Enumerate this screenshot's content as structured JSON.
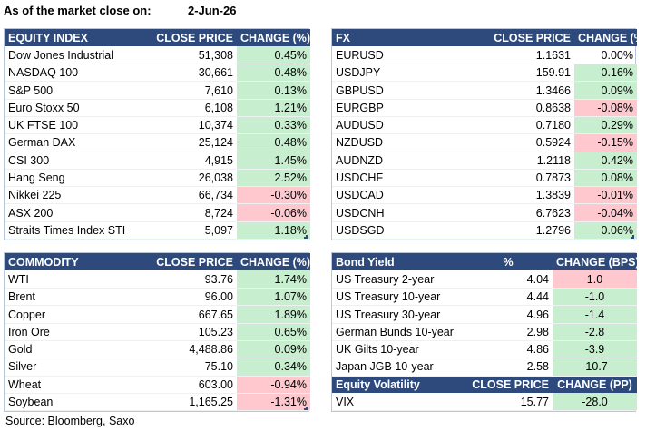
{
  "header": {
    "label": "As of the market close on:",
    "date": "2-Jun-26"
  },
  "equity": {
    "headers": [
      "EQUITY INDEX",
      "CLOSE PRICE",
      "CHANGE (%)"
    ],
    "rows": [
      {
        "name": "Dow Jones Industrial",
        "price": "51,308",
        "change": "0.45%",
        "dir": "pos"
      },
      {
        "name": "NASDAQ 100",
        "price": "30,661",
        "change": "0.48%",
        "dir": "pos"
      },
      {
        "name": "S&P 500",
        "price": "7,610",
        "change": "0.13%",
        "dir": "pos"
      },
      {
        "name": "Euro Stoxx 50",
        "price": "6,108",
        "change": "1.21%",
        "dir": "pos"
      },
      {
        "name": "UK FTSE 100",
        "price": "10,374",
        "change": "0.33%",
        "dir": "pos"
      },
      {
        "name": "German DAX",
        "price": "25,124",
        "change": "0.48%",
        "dir": "pos"
      },
      {
        "name": "CSI 300",
        "price": "4,915",
        "change": "1.45%",
        "dir": "pos"
      },
      {
        "name": "Hang Seng",
        "price": "26,038",
        "change": "2.52%",
        "dir": "pos"
      },
      {
        "name": "Nikkei 225",
        "price": "66,734",
        "change": "-0.30%",
        "dir": "neg"
      },
      {
        "name": "ASX 200",
        "price": "8,724",
        "change": "-0.06%",
        "dir": "neg"
      },
      {
        "name": "Straits Times Index STI",
        "price": "5,097",
        "change": "1.18%",
        "dir": "pos"
      }
    ]
  },
  "fx": {
    "headers": [
      "FX",
      "CLOSE PRICE",
      "CHANGE (%)"
    ],
    "rows": [
      {
        "name": "EURUSD",
        "price": "1.1631",
        "change": "0.00%",
        "dir": "none"
      },
      {
        "name": "USDJPY",
        "price": "159.91",
        "change": "0.16%",
        "dir": "pos"
      },
      {
        "name": "GBPUSD",
        "price": "1.3466",
        "change": "0.09%",
        "dir": "pos"
      },
      {
        "name": "EURGBP",
        "price": "0.8638",
        "change": "-0.08%",
        "dir": "neg"
      },
      {
        "name": "AUDUSD",
        "price": "0.7180",
        "change": "0.29%",
        "dir": "pos"
      },
      {
        "name": "NZDUSD",
        "price": "0.5924",
        "change": "-0.15%",
        "dir": "neg"
      },
      {
        "name": "AUDNZD",
        "price": "1.2118",
        "change": "0.42%",
        "dir": "pos"
      },
      {
        "name": "USDCHF",
        "price": "0.7873",
        "change": "0.08%",
        "dir": "pos"
      },
      {
        "name": "USDCAD",
        "price": "1.3839",
        "change": "-0.01%",
        "dir": "neg"
      },
      {
        "name": "USDCNH",
        "price": "6.7623",
        "change": "-0.04%",
        "dir": "neg"
      },
      {
        "name": "USDSGD",
        "price": "1.2796",
        "change": "0.06%",
        "dir": "pos"
      }
    ]
  },
  "commodity": {
    "headers": [
      "COMMODITY",
      "CLOSE PRICE",
      "CHANGE (%)"
    ],
    "rows": [
      {
        "name": "WTI",
        "price": "93.76",
        "change": "1.74%",
        "dir": "pos"
      },
      {
        "name": "Brent",
        "price": "96.00",
        "change": "1.07%",
        "dir": "pos"
      },
      {
        "name": "Copper",
        "price": "667.65",
        "change": "1.89%",
        "dir": "pos"
      },
      {
        "name": "Iron Ore",
        "price": "105.23",
        "change": "0.65%",
        "dir": "pos"
      },
      {
        "name": "Gold",
        "price": "4,488.86",
        "change": "0.09%",
        "dir": "pos"
      },
      {
        "name": "Silver",
        "price": "75.10",
        "change": "0.34%",
        "dir": "pos"
      },
      {
        "name": "Wheat",
        "price": "603.00",
        "change": "-0.94%",
        "dir": "neg"
      },
      {
        "name": "Soybean",
        "price": "1,165.25",
        "change": "-1.31%",
        "dir": "neg"
      }
    ]
  },
  "bonds": {
    "headers": [
      "Bond Yield",
      "%",
      "CHANGE (BPS)"
    ],
    "rows": [
      {
        "name": "US Treasury 2-year",
        "price": "4.04",
        "change": "1.0",
        "dir": "neg"
      },
      {
        "name": "US Treasury 10-year",
        "price": "4.44",
        "change": "-1.0",
        "dir": "pos"
      },
      {
        "name": "US Treasury 30-year",
        "price": "4.96",
        "change": "-1.4",
        "dir": "pos"
      },
      {
        "name": "German Bunds 10-year",
        "price": "2.98",
        "change": "-2.8",
        "dir": "pos"
      },
      {
        "name": "UK Gilts 10-year",
        "price": "4.86",
        "change": "-3.9",
        "dir": "pos"
      },
      {
        "name": "Japan JGB 10-year",
        "price": "2.58",
        "change": "-10.7",
        "dir": "pos"
      }
    ]
  },
  "volatility": {
    "headers": [
      "Equity Volatility",
      "CLOSE PRICE",
      "CHANGE (PP)"
    ],
    "rows": [
      {
        "name": "VIX",
        "price": "15.77",
        "change": "-28.0",
        "dir": "pos"
      }
    ]
  },
  "source": "Source: Bloomberg, Saxo",
  "colors": {
    "header_bg": "#2e4a7d",
    "positive": "#c7efcf",
    "negative": "#ffc7ce"
  }
}
